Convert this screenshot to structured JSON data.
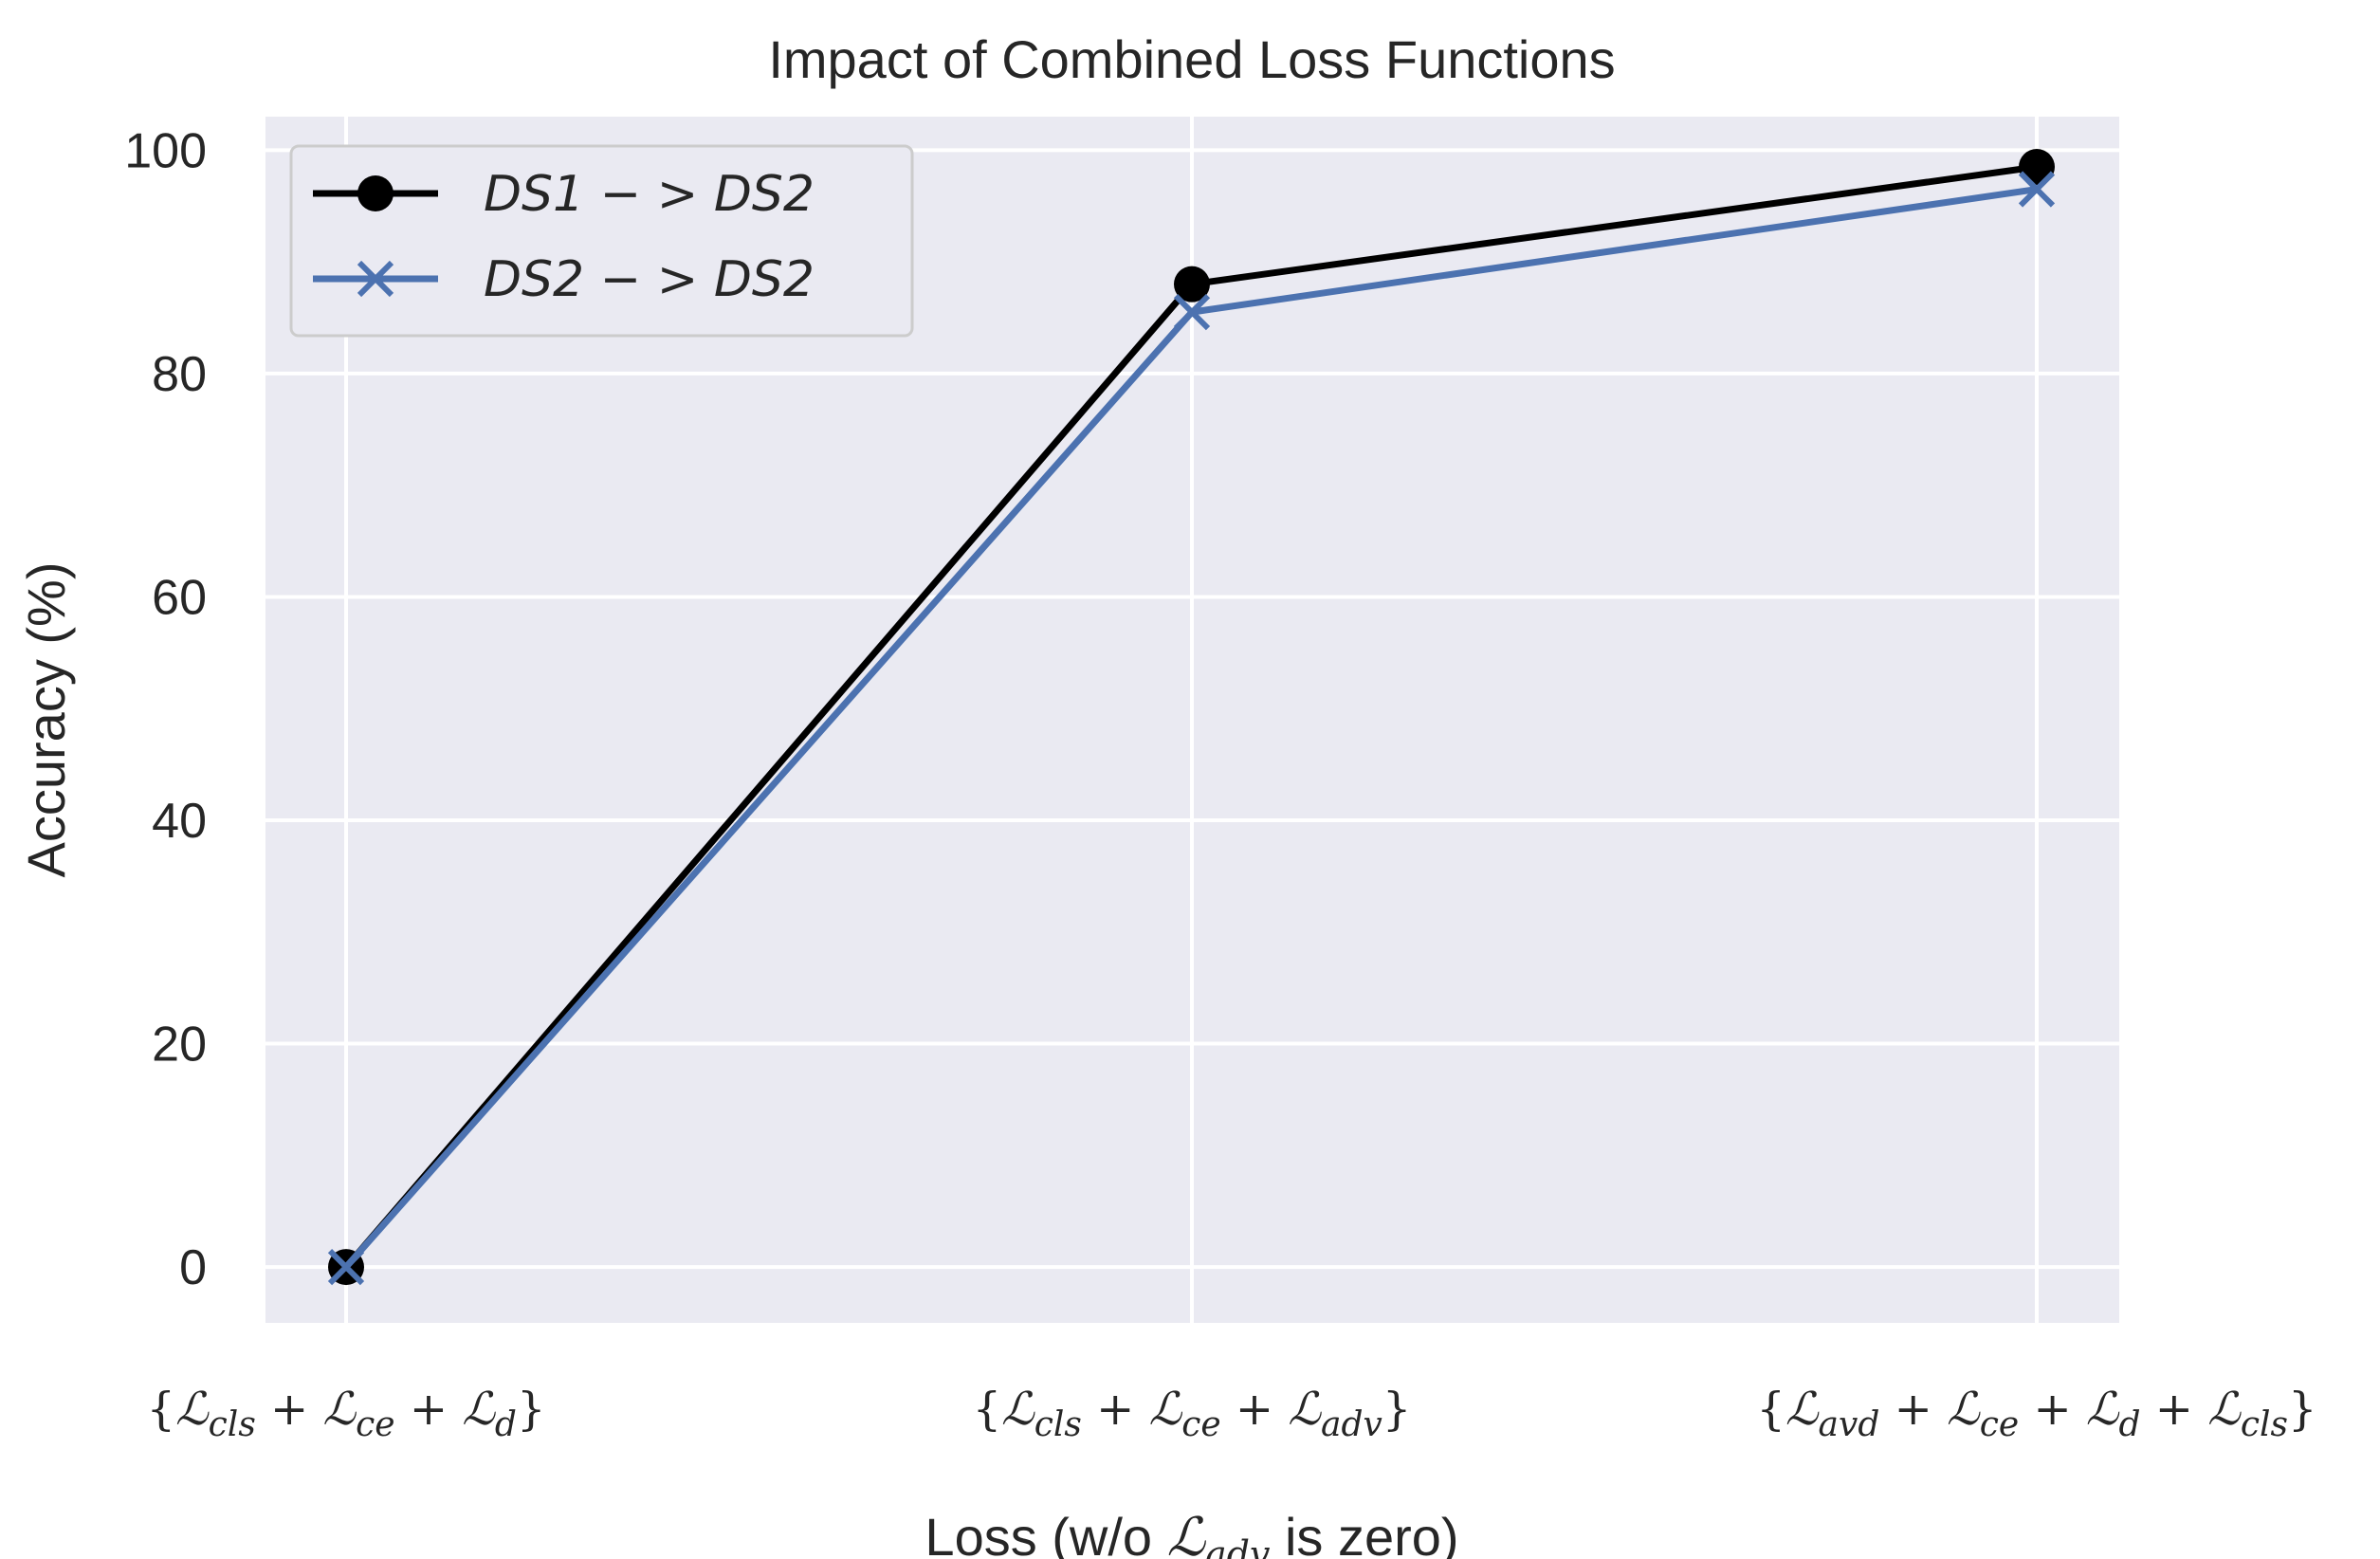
{
  "chart_data": {
    "type": "line",
    "title": "Impact of Combined Loss Functions",
    "xlabel": "Loss (w/o ℒadv is zero)",
    "ylabel": "Accuracy (%)",
    "categories": [
      "{ℒcls + ℒce + ℒd}",
      "{ℒcls + ℒce + ℒadv}",
      "{ℒavd + ℒce + ℒd + ℒcls}"
    ],
    "series": [
      {
        "name": "DS1 − > DS2",
        "color": "#000000",
        "marker": "circle",
        "values": [
          0,
          88,
          98.5
        ]
      },
      {
        "name": "DS2 − > DS2",
        "color": "#4c72b0",
        "marker": "x",
        "values": [
          0,
          85.5,
          96.5
        ]
      }
    ],
    "ylim": [
      -5,
      103
    ],
    "yticks": [
      0,
      20,
      40,
      60,
      80,
      100
    ],
    "grid": true,
    "legend_position": "top-left",
    "background": "#eaeaf2"
  }
}
